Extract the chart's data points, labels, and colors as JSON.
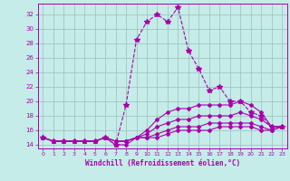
{
  "xlabel": "Windchill (Refroidissement éolien,°C)",
  "xlim": [
    -0.5,
    23.5
  ],
  "ylim": [
    13.5,
    33.5
  ],
  "yticks": [
    14,
    16,
    18,
    20,
    22,
    24,
    26,
    28,
    30,
    32
  ],
  "xticks": [
    0,
    1,
    2,
    3,
    4,
    5,
    6,
    7,
    8,
    9,
    10,
    11,
    12,
    13,
    14,
    15,
    16,
    17,
    18,
    19,
    20,
    21,
    22,
    23
  ],
  "background_color": "#c5ece8",
  "grid_color": "#9bbfba",
  "line_color": "#aa00aa",
  "lines": [
    {
      "x": [
        0,
        1,
        2,
        3,
        4,
        5,
        6,
        7,
        8,
        9,
        10,
        11,
        12,
        13,
        14,
        15,
        16,
        17,
        18,
        19,
        20,
        21,
        22,
        23
      ],
      "y": [
        15.0,
        14.5,
        14.5,
        14.5,
        14.5,
        14.5,
        15.0,
        14.0,
        19.5,
        28.5,
        31.0,
        32.0,
        31.0,
        33.0,
        27.0,
        24.5,
        21.5,
        22.0,
        20.0,
        20.0,
        18.5,
        18.0,
        16.5,
        16.5
      ],
      "style": "--",
      "marker": "*",
      "markersize": 4
    },
    {
      "x": [
        0,
        1,
        2,
        3,
        4,
        5,
        6,
        7,
        8,
        9,
        10,
        11,
        12,
        13,
        14,
        15,
        16,
        17,
        18,
        19,
        20,
        21,
        22,
        23
      ],
      "y": [
        15.0,
        14.5,
        14.5,
        14.5,
        14.5,
        14.5,
        15.0,
        14.0,
        14.0,
        15.0,
        16.0,
        17.5,
        18.5,
        19.0,
        19.0,
        19.5,
        19.5,
        19.5,
        19.5,
        20.0,
        19.5,
        18.5,
        16.5,
        16.5
      ],
      "style": "-",
      "marker": "D",
      "markersize": 2
    },
    {
      "x": [
        0,
        1,
        2,
        3,
        4,
        5,
        6,
        7,
        8,
        9,
        10,
        11,
        12,
        13,
        14,
        15,
        16,
        17,
        18,
        19,
        20,
        21,
        22,
        23
      ],
      "y": [
        15.0,
        14.5,
        14.5,
        14.5,
        14.5,
        14.5,
        15.0,
        14.5,
        14.5,
        15.0,
        15.5,
        16.5,
        17.0,
        17.5,
        17.5,
        18.0,
        18.0,
        18.0,
        18.0,
        18.5,
        18.0,
        17.5,
        16.5,
        16.5
      ],
      "style": "-",
      "marker": "D",
      "markersize": 2
    },
    {
      "x": [
        0,
        1,
        2,
        3,
        4,
        5,
        6,
        7,
        8,
        9,
        10,
        11,
        12,
        13,
        14,
        15,
        16,
        17,
        18,
        19,
        20,
        21,
        22,
        23
      ],
      "y": [
        15.0,
        14.5,
        14.5,
        14.5,
        14.5,
        14.5,
        15.0,
        14.5,
        14.5,
        15.0,
        15.0,
        15.5,
        16.0,
        16.5,
        16.5,
        16.5,
        17.0,
        17.0,
        17.0,
        17.0,
        17.0,
        16.5,
        16.0,
        16.5
      ],
      "style": "-",
      "marker": "D",
      "markersize": 2
    },
    {
      "x": [
        0,
        1,
        2,
        3,
        4,
        5,
        6,
        7,
        8,
        9,
        10,
        11,
        12,
        13,
        14,
        15,
        16,
        17,
        18,
        19,
        20,
        21,
        22,
        23
      ],
      "y": [
        15.0,
        14.5,
        14.5,
        14.5,
        14.5,
        14.5,
        15.0,
        14.5,
        14.5,
        15.0,
        15.0,
        15.0,
        15.5,
        16.0,
        16.0,
        16.0,
        16.0,
        16.5,
        16.5,
        16.5,
        16.5,
        16.0,
        16.0,
        16.5
      ],
      "style": "-",
      "marker": "D",
      "markersize": 2
    }
  ]
}
